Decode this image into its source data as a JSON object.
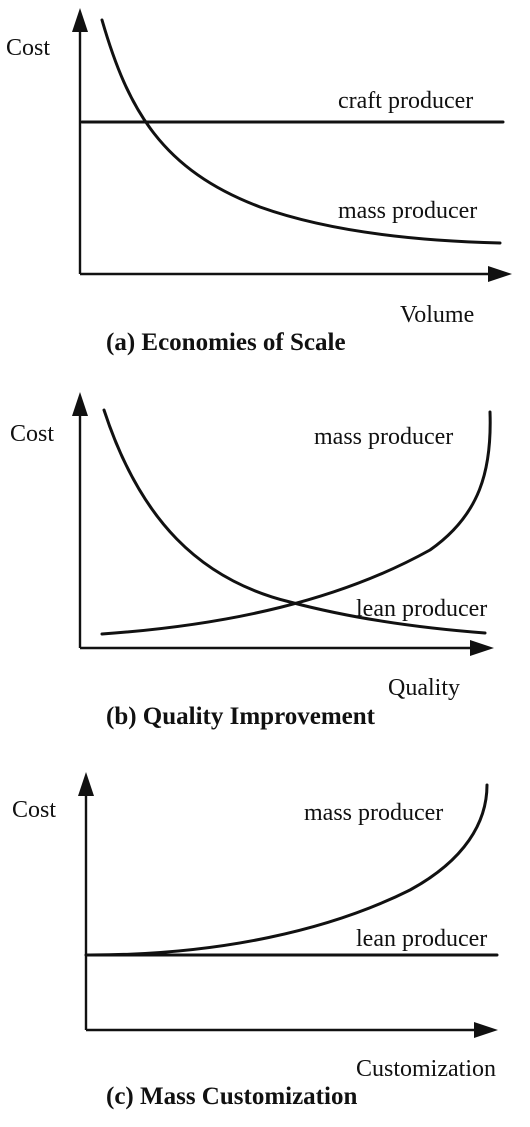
{
  "panels": [
    {
      "y_label": "Cost",
      "x_label": "Volume",
      "caption": "(a) Economies of Scale",
      "curve_labels": [
        "craft producer",
        "mass producer"
      ]
    },
    {
      "y_label": "Cost",
      "x_label": "Quality",
      "caption": "(b) Quality Improvement",
      "curve_labels": [
        "mass producer",
        "lean producer"
      ]
    },
    {
      "y_label": "Cost",
      "x_label": "Customization",
      "caption": "(c) Mass Customization",
      "curve_labels": [
        "mass producer",
        "lean producer"
      ]
    }
  ]
}
